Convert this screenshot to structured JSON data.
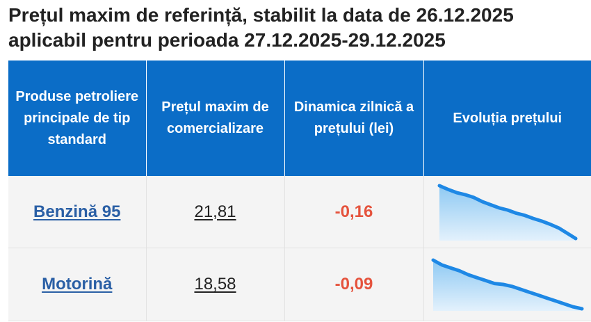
{
  "title": {
    "line1": "Prețul maxim de referință, stabilit la data de 26.12.2025",
    "line2": "aplicabil pentru perioada 27.12.2025-29.12.2025"
  },
  "table": {
    "headers": {
      "product": "Produse petroliere principale de tip standard",
      "max_price": "Prețul maxim de comercializare",
      "daily_dynamic": "Dinamica zilnică a prețului (lei)",
      "evolution": "Evoluția prețului"
    },
    "rows": [
      {
        "product": "Benzină 95",
        "price": "21,81",
        "dynamic": "-0,16",
        "trend": [
          1.0,
          0.93,
          0.87,
          0.83,
          0.78,
          0.7,
          0.64,
          0.58,
          0.54,
          0.48,
          0.44,
          0.38,
          0.33,
          0.27,
          0.2,
          0.1,
          0.0
        ]
      },
      {
        "product": "Motorină",
        "price": "18,58",
        "dynamic": "-0,09",
        "trend": [
          1.0,
          0.9,
          0.84,
          0.78,
          0.7,
          0.64,
          0.58,
          0.52,
          0.5,
          0.46,
          0.4,
          0.34,
          0.28,
          0.22,
          0.16,
          0.1,
          0.04,
          0.0
        ]
      }
    ]
  },
  "colors": {
    "header_bg": "#0b6dc7",
    "link": "#2a5fa5",
    "negative": "#e5533d",
    "sparkline_line": "#1e88e5",
    "sparkline_fill_top": "#8ec9f3",
    "sparkline_fill_bottom": "#e3f1fc"
  }
}
